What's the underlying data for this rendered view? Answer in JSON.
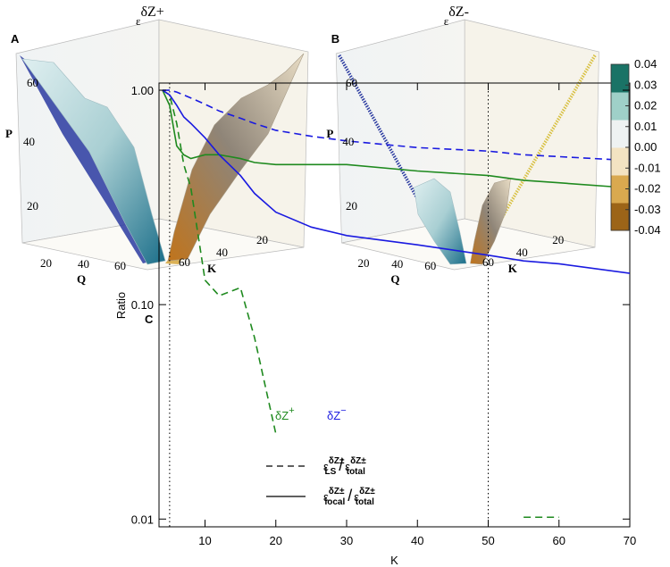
{
  "chart_data": [
    {
      "type": "surface3d",
      "panel": "A",
      "title_base": "ε",
      "title_sup": "δZ+",
      "zlabel": "P",
      "xlabel": "Q",
      "ylabel": "K",
      "zticks": [
        20,
        40,
        60
      ],
      "xticks": [
        20,
        40,
        60
      ],
      "yticks": [
        20,
        40,
        60
      ]
    },
    {
      "type": "surface3d",
      "panel": "B",
      "title_base": "ε",
      "title_sup": "δZ-",
      "zlabel": "P",
      "xlabel": "Q",
      "ylabel": "K",
      "zticks": [
        20,
        40,
        60
      ],
      "xticks": [
        20,
        40,
        60
      ],
      "yticks": [
        20,
        40,
        60
      ],
      "colorbar": {
        "lim": [
          -0.04,
          0.04
        ],
        "ticks": [
          0.04,
          0.03,
          0.02,
          0.01,
          {
            "value": 0,
            "label": "0.00"
          },
          -0.01,
          -0.02,
          -0.03,
          -0.04
        ],
        "colors": [
          "#9c6418",
          "#d9a94f",
          "#f3e3c2",
          "#eef2f2",
          "#9fd0c8",
          "#1a7366"
        ]
      }
    },
    {
      "type": "line",
      "panel": "C",
      "xlabel": "K",
      "ylabel": "Ratio",
      "log_y": true,
      "xlim": [
        3.5,
        70
      ],
      "ylim": [
        0.0092,
        1.08
      ],
      "xticks": [
        10,
        20,
        30,
        40,
        50,
        60,
        70
      ],
      "yticks": [
        {
          "value": 1,
          "label": "1.00"
        },
        {
          "value": 0.1,
          "label": "0.10"
        },
        {
          "value": 0.01,
          "label": "0.01"
        }
      ],
      "vlines": [
        5,
        50
      ],
      "x": [
        4,
        5,
        6,
        7,
        8,
        10,
        12,
        15,
        17,
        20,
        25,
        30,
        40,
        50,
        55,
        60,
        70
      ],
      "series": [
        {
          "color": "#1f8a1f",
          "dash": false,
          "values": [
            1.0,
            0.85,
            0.55,
            0.5,
            0.48,
            0.5,
            0.5,
            0.48,
            0.46,
            0.45,
            0.45,
            0.45,
            0.42,
            0.4,
            0.38,
            0.37,
            0.35
          ]
        },
        {
          "color": "#1f8a1f",
          "dash": true,
          "values": [
            1.0,
            0.95,
            0.7,
            0.45,
            0.35,
            0.13,
            0.11,
            0.12,
            0.07,
            0.025,
            null,
            null,
            null,
            null,
            0.0102,
            0.0102,
            null
          ]
        },
        {
          "color": "#1a1ae0",
          "dash": false,
          "values": [
            1.0,
            0.95,
            0.85,
            0.75,
            0.7,
            0.6,
            0.5,
            0.4,
            0.33,
            0.27,
            0.23,
            0.21,
            0.19,
            0.17,
            0.16,
            0.155,
            0.14
          ]
        },
        {
          "color": "#1a1ae0",
          "dash": true,
          "values": [
            1.0,
            1.0,
            0.98,
            0.95,
            0.92,
            0.86,
            0.8,
            0.74,
            0.7,
            0.65,
            0.61,
            0.58,
            0.54,
            0.52,
            0.5,
            0.49,
            0.47
          ]
        }
      ],
      "annotations": [
        {
          "base": "δZ",
          "sup": "+",
          "color": "#1f8a1f"
        },
        {
          "base": "δZ",
          "sup": "−",
          "color": "#1a1ae0"
        }
      ],
      "legend": [
        {
          "dash": true,
          "base": "ε",
          "sup": "δZ±",
          "sub": "LS",
          "slash": "/",
          "base2": "ε",
          "sup2": "δZ±",
          "sub2": "total"
        },
        {
          "dash": false,
          "base": "ε",
          "sup": "δZ±",
          "sub": "local",
          "slash": "/",
          "base2": "ε",
          "sup2": "δZ±",
          "sub2": "total"
        }
      ]
    }
  ]
}
